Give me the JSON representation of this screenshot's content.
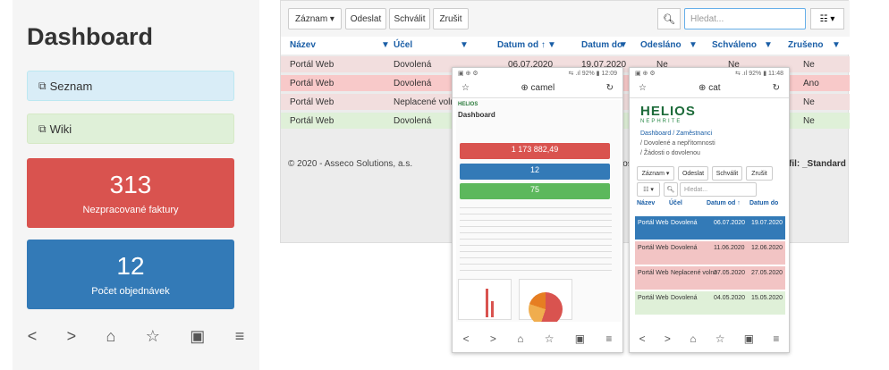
{
  "left_phone": {
    "title": "Dashboard",
    "links": [
      {
        "label": "Seznam"
      },
      {
        "label": "Wiki"
      }
    ],
    "tiles": [
      {
        "value": "313",
        "label": "Nezpracované faktury",
        "color": "#d9534f"
      },
      {
        "value": "12",
        "label": "Počet objednávek",
        "color": "#337ab7"
      }
    ],
    "nav": [
      "<",
      ">",
      "⌂",
      "☆",
      "▣",
      "≡"
    ]
  },
  "desktop": {
    "toolbar": {
      "zaznam": "Záznam ▾",
      "odeslat": "Odeslat",
      "schvalit": "Schválit",
      "zrusit": "Zrušit",
      "search_placeholder": "Hledat...",
      "list_btn": "☷ ▾"
    },
    "columns": [
      "Název",
      "Účel",
      "Datum od ↑",
      "Datum do",
      "Odesláno",
      "Schváleno",
      "Zrušeno"
    ],
    "rows": [
      {
        "nazev": "Portál Web",
        "ucel": "Dovolená",
        "od": "06.07.2020",
        "do": "19.07.2020",
        "odeslano": "Ne",
        "schvaleno": "Ne",
        "zruseno": "Ne"
      },
      {
        "nazev": "Portál Web",
        "ucel": "Dovolená",
        "od": "",
        "do": "",
        "odeslano": "",
        "schvaleno": "",
        "zruseno": "Ano"
      },
      {
        "nazev": "Portál Web",
        "ucel": "Neplacené volno",
        "od": "",
        "do": "",
        "odeslano": "",
        "schvaleno": "",
        "zruseno": "Ne"
      },
      {
        "nazev": "Portál Web",
        "ucel": "Dovolená",
        "od": "",
        "do": "",
        "odeslano": "",
        "schvaleno": "",
        "zruseno": "Ne"
      }
    ],
    "footer": "© 2020 - Asseco Solutions, a.s.",
    "footer_mid": "lelios",
    "footer_right": "rofil: _Standard"
  },
  "mid_phone": {
    "status_left": "▣ ⊕ ⚙",
    "status_right": "⇆ .ıl 92% ▮ 12:09",
    "address": "camel",
    "title": "Dashboard",
    "logo": "HELIOS",
    "bars": [
      {
        "value": "1 173 882,49"
      },
      {
        "value": "12"
      },
      {
        "value": "75"
      }
    ]
  },
  "right_phone": {
    "status_left": "▣ ⊕ ⚙",
    "status_right": "⇆ .ıl 92% ▮ 11:48",
    "address": "cat",
    "logo": "HELIOS",
    "logo_sub": "NEPHRITE",
    "crumbs": [
      "Dashboard / Zaměstnanci",
      "/ Dovolené a nepřítomnosti",
      "/ Žádosti o dovolenou"
    ],
    "buttons": [
      "Záznam ▾",
      "Odeslat",
      "Schválit",
      "Zrušit"
    ],
    "search_placeholder": "Hledat...",
    "columns": [
      "Název",
      "Účel",
      "Datum od ↑",
      "Datum do"
    ],
    "rows": [
      {
        "nazev": "Portál Web",
        "ucel": "Dovolená",
        "od": "06.07.2020",
        "do": "19.07.2020"
      },
      {
        "nazev": "Portál Web",
        "ucel": "Dovolená",
        "od": "11.06.2020",
        "do": "12.06.2020"
      },
      {
        "nazev": "Portál Web",
        "ucel": "Neplacené volno",
        "od": "27.05.2020",
        "do": "27.05.2020"
      },
      {
        "nazev": "Portál Web",
        "ucel": "Dovolená",
        "od": "04.05.2020",
        "do": "15.05.2020"
      }
    ]
  }
}
